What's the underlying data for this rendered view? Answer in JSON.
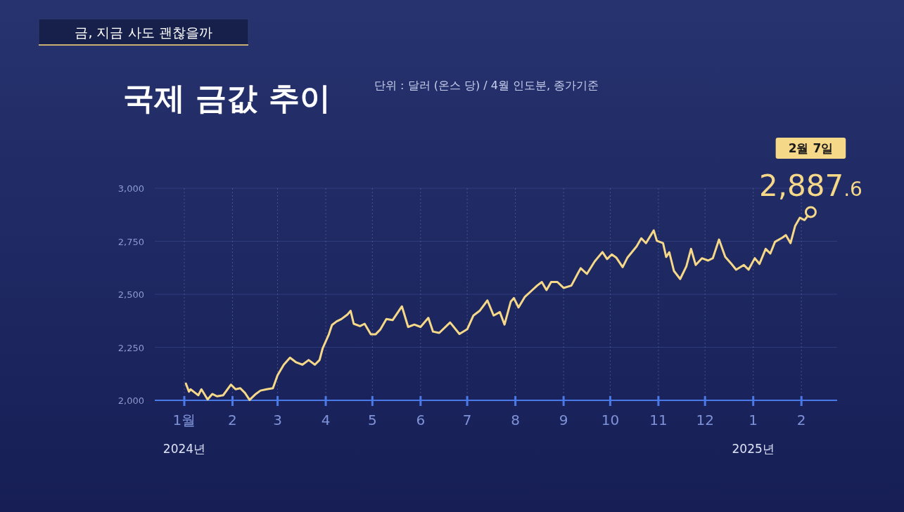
{
  "chart_data": {
    "type": "line",
    "title": "국제 금값 추이",
    "subtitle": "단위 : 달러 (온스 당) / 4월 인도분, 종가기준",
    "annotations": [
      "금, 지금 사도 괜찮을까",
      "2월 7일",
      {
        "text": "2,887.6",
        "x": "2025-02-07",
        "y": 2887.6
      }
    ],
    "series": [
      {
        "color": "#f6d889",
        "x": [
          "2024-01-02",
          "2024-01-04",
          "2024-01-05",
          "2024-01-08",
          "2024-01-10",
          "2024-01-12",
          "2024-01-16",
          "2024-01-19",
          "2024-01-22",
          "2024-01-26",
          "2024-01-31",
          "2024-02-03",
          "2024-02-06",
          "2024-02-09",
          "2024-02-12",
          "2024-02-16",
          "2024-02-19",
          "2024-02-23",
          "2024-02-27",
          "2024-03-01",
          "2024-03-05",
          "2024-03-09",
          "2024-03-13",
          "2024-03-17",
          "2024-03-21",
          "2024-03-25",
          "2024-03-28",
          "2024-03-30",
          "2024-04-03",
          "2024-04-05",
          "2024-04-08",
          "2024-04-11",
          "2024-04-15",
          "2024-04-17",
          "2024-04-19",
          "2024-04-23",
          "2024-04-26",
          "2024-04-30",
          "2024-05-03",
          "2024-05-06",
          "2024-05-10",
          "2024-05-14",
          "2024-05-20",
          "2024-05-24",
          "2024-05-28",
          "2024-06-01",
          "2024-06-06",
          "2024-06-09",
          "2024-06-13",
          "2024-06-20",
          "2024-06-26",
          "2024-07-01",
          "2024-07-05",
          "2024-07-09",
          "2024-07-14",
          "2024-07-18",
          "2024-07-22",
          "2024-07-25",
          "2024-07-29",
          "2024-07-31",
          "2024-08-03",
          "2024-08-07",
          "2024-08-11",
          "2024-08-15",
          "2024-08-18",
          "2024-08-21",
          "2024-08-24",
          "2024-08-28",
          "2024-09-01",
          "2024-09-06",
          "2024-09-10",
          "2024-09-12",
          "2024-09-16",
          "2024-09-21",
          "2024-09-26",
          "2024-09-29",
          "2024-10-02",
          "2024-10-05",
          "2024-10-09",
          "2024-10-12",
          "2024-10-18",
          "2024-10-21",
          "2024-10-24",
          "2024-10-29",
          "2024-10-31",
          "2024-11-04",
          "2024-11-06",
          "2024-11-08",
          "2024-11-11",
          "2024-11-15",
          "2024-11-19",
          "2024-11-22",
          "2024-11-25",
          "2024-11-29",
          "2024-12-03",
          "2024-12-06",
          "2024-12-10",
          "2024-12-14",
          "2024-12-18",
          "2024-12-21",
          "2024-12-26",
          "2024-12-29",
          "2025-01-02",
          "2025-01-05",
          "2025-01-09",
          "2025-01-12",
          "2025-01-15",
          "2025-01-20",
          "2025-01-22",
          "2025-01-25",
          "2025-01-28",
          "2025-01-31",
          "2025-02-03",
          "2025-02-07"
        ],
        "values": [
          2079,
          2041,
          2052,
          2035,
          2024,
          2052,
          2004,
          2030,
          2019,
          2024,
          2074,
          2052,
          2057,
          2035,
          2002,
          2030,
          2046,
          2052,
          2057,
          2118,
          2168,
          2201,
          2179,
          2168,
          2190,
          2168,
          2190,
          2245,
          2311,
          2355,
          2372,
          2383,
          2405,
          2422,
          2361,
          2350,
          2361,
          2311,
          2311,
          2333,
          2383,
          2378,
          2443,
          2346,
          2357,
          2346,
          2389,
          2324,
          2318,
          2367,
          2313,
          2335,
          2400,
          2422,
          2471,
          2400,
          2416,
          2357,
          2465,
          2482,
          2438,
          2487,
          2514,
          2541,
          2558,
          2520,
          2558,
          2558,
          2530,
          2541,
          2596,
          2623,
          2596,
          2655,
          2699,
          2666,
          2688,
          2672,
          2628,
          2672,
          2726,
          2764,
          2741,
          2801,
          2752,
          2741,
          2676,
          2698,
          2610,
          2572,
          2632,
          2714,
          2638,
          2670,
          2659,
          2670,
          2758,
          2676,
          2643,
          2616,
          2638,
          2616,
          2670,
          2643,
          2714,
          2692,
          2747,
          2768,
          2779,
          2741,
          2823,
          2861,
          2850,
          2887.6
        ]
      }
    ],
    "xlim": [
      "2023-12-13",
      "2025-02-24"
    ],
    "xticks": [
      {
        "value": "2024-01-01",
        "label": "1월$_{2024년}$"
      },
      {
        "value": "2024-02-01",
        "label": "2"
      },
      {
        "value": "2024-03-01",
        "label": "3"
      },
      {
        "value": "2024-04-01",
        "label": "4"
      },
      {
        "value": "2024-05-01",
        "label": "5"
      },
      {
        "value": "2024-06-01",
        "label": "6"
      },
      {
        "value": "2024-07-01",
        "label": "7"
      },
      {
        "value": "2024-08-01",
        "label": "8"
      },
      {
        "value": "2024-09-01",
        "label": "9"
      },
      {
        "value": "2024-10-01",
        "label": "10"
      },
      {
        "value": "2024-11-01",
        "label": "11"
      },
      {
        "value": "2024-12-01",
        "label": "12"
      },
      {
        "value": "2025-01-01",
        "label": "1$_{2025년}$"
      },
      {
        "value": "2025-02-01",
        "label": "2"
      }
    ],
    "ylim": [
      2000,
      3000
    ],
    "yticks": [
      {
        "value": 2000,
        "label": "2,000"
      },
      {
        "value": 2250,
        "label": "2,250"
      },
      {
        "value": 2500,
        "label": "2,500"
      },
      {
        "value": 2750,
        "label": "2,750"
      },
      {
        "value": 3000,
        "label": "3,000"
      }
    ],
    "grid": true,
    "marker": "none",
    "line_style": "solid"
  }
}
